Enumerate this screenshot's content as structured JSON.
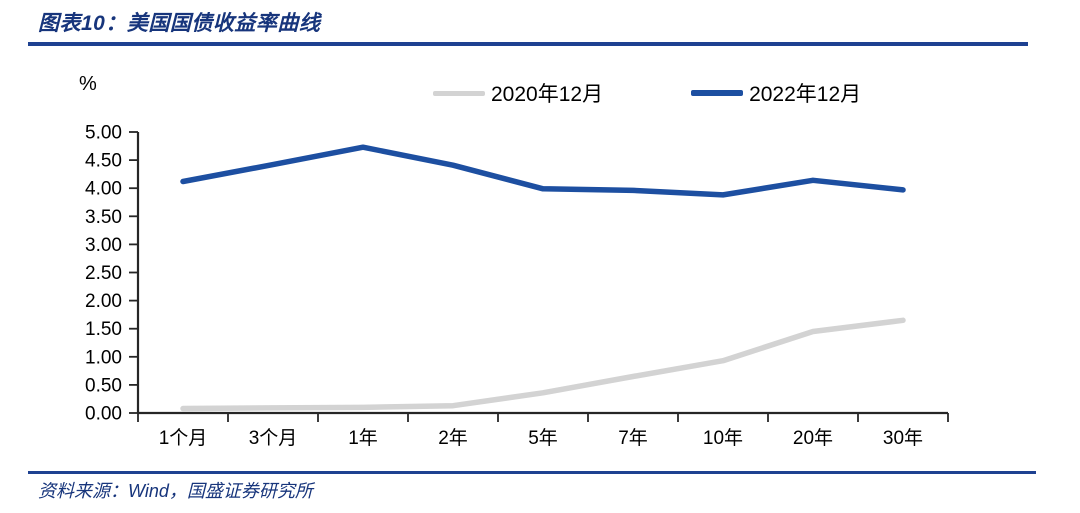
{
  "header": {
    "title": "图表10：美国国债收益率曲线"
  },
  "chart": {
    "unit_label": "%",
    "legend": [
      {
        "label": "2020年12月"
      },
      {
        "label": "2022年12月"
      }
    ]
  },
  "chart_data": {
    "type": "line",
    "title": "美国国债收益率曲线",
    "categories": [
      "1个月",
      "3个月",
      "1年",
      "2年",
      "5年",
      "7年",
      "10年",
      "20年",
      "30年"
    ],
    "series": [
      {
        "name": "2020年12月",
        "color": "#d3d3d3",
        "values": [
          0.08,
          0.09,
          0.1,
          0.13,
          0.36,
          0.65,
          0.93,
          1.45,
          1.65
        ]
      },
      {
        "name": "2022年12月",
        "color": "#1d4fa1",
        "values": [
          4.12,
          4.42,
          4.73,
          4.41,
          3.99,
          3.96,
          3.88,
          4.14,
          3.97
        ]
      }
    ],
    "xlabel": "",
    "ylabel": "%",
    "ylim": [
      0,
      5
    ],
    "ytick_step": 0.5,
    "ytick_labels": [
      "0.00",
      "0.50",
      "1.00",
      "1.50",
      "2.00",
      "2.50",
      "3.00",
      "3.50",
      "4.00",
      "4.50",
      "5.00"
    ],
    "grid": false,
    "legend_position": "top"
  },
  "footer": {
    "source": "资料来源：Wind，国盛证券研究所"
  },
  "colors": {
    "accent_text": "#17357c",
    "rule_blue": "#1e4191",
    "series_gray": "#d3d3d3",
    "series_blue": "#1d4fa1",
    "axis": "#262626",
    "tick_label": "#000000"
  }
}
